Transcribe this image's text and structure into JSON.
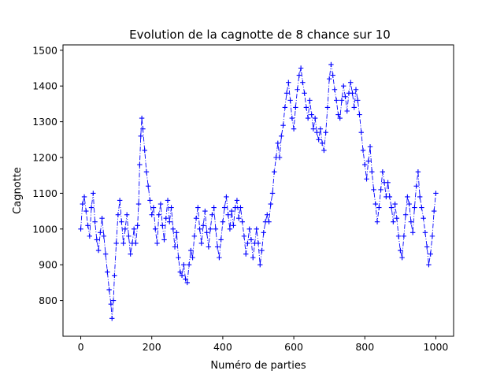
{
  "chart_data": {
    "type": "line",
    "title": "Evolution de la cagnotte de 8 chance sur 10",
    "xlabel": "Numéro de parties",
    "ylabel": "Cagnotte",
    "xlim": [
      -50,
      1050
    ],
    "ylim": [
      700,
      1515
    ],
    "xticks": [
      0,
      200,
      400,
      600,
      800,
      1000
    ],
    "yticks": [
      800,
      900,
      1000,
      1100,
      1200,
      1300,
      1400,
      1500
    ],
    "grid": false,
    "legend": "none",
    "series": [
      {
        "color": "#0000ff",
        "line_style": "dashdot",
        "marker": "+",
        "points": [
          [
            0,
            1000
          ],
          [
            5,
            1070
          ],
          [
            10,
            1090
          ],
          [
            15,
            1050
          ],
          [
            20,
            1010
          ],
          [
            25,
            980
          ],
          [
            30,
            1060
          ],
          [
            35,
            1100
          ],
          [
            40,
            1020
          ],
          [
            45,
            970
          ],
          [
            50,
            940
          ],
          [
            55,
            990
          ],
          [
            60,
            1030
          ],
          [
            65,
            980
          ],
          [
            70,
            930
          ],
          [
            75,
            880
          ],
          [
            80,
            830
          ],
          [
            85,
            790
          ],
          [
            88,
            750
          ],
          [
            92,
            800
          ],
          [
            95,
            870
          ],
          [
            100,
            960
          ],
          [
            105,
            1040
          ],
          [
            110,
            1080
          ],
          [
            115,
            1020
          ],
          [
            120,
            960
          ],
          [
            125,
            1000
          ],
          [
            130,
            1040
          ],
          [
            135,
            980
          ],
          [
            140,
            930
          ],
          [
            145,
            960
          ],
          [
            150,
            1000
          ],
          [
            155,
            960
          ],
          [
            160,
            1010
          ],
          [
            163,
            1070
          ],
          [
            166,
            1180
          ],
          [
            169,
            1260
          ],
          [
            172,
            1310
          ],
          [
            175,
            1280
          ],
          [
            180,
            1220
          ],
          [
            185,
            1160
          ],
          [
            190,
            1120
          ],
          [
            195,
            1080
          ],
          [
            200,
            1040
          ],
          [
            205,
            1060
          ],
          [
            210,
            1000
          ],
          [
            215,
            960
          ],
          [
            220,
            1040
          ],
          [
            225,
            1070
          ],
          [
            230,
            1010
          ],
          [
            235,
            970
          ],
          [
            240,
            1030
          ],
          [
            245,
            1080
          ],
          [
            250,
            1020
          ],
          [
            255,
            1060
          ],
          [
            260,
            1000
          ],
          [
            265,
            950
          ],
          [
            270,
            990
          ],
          [
            275,
            920
          ],
          [
            280,
            880
          ],
          [
            285,
            870
          ],
          [
            290,
            900
          ],
          [
            295,
            860
          ],
          [
            300,
            850
          ],
          [
            305,
            900
          ],
          [
            310,
            940
          ],
          [
            315,
            920
          ],
          [
            320,
            980
          ],
          [
            325,
            1030
          ],
          [
            330,
            1060
          ],
          [
            335,
            1000
          ],
          [
            340,
            960
          ],
          [
            345,
            1010
          ],
          [
            350,
            1050
          ],
          [
            355,
            990
          ],
          [
            360,
            950
          ],
          [
            365,
            1000
          ],
          [
            370,
            1040
          ],
          [
            375,
            1060
          ],
          [
            380,
            1000
          ],
          [
            385,
            950
          ],
          [
            390,
            920
          ],
          [
            395,
            970
          ],
          [
            400,
            1020
          ],
          [
            405,
            1060
          ],
          [
            410,
            1090
          ],
          [
            415,
            1040
          ],
          [
            420,
            1000
          ],
          [
            425,
            1050
          ],
          [
            430,
            1010
          ],
          [
            435,
            1060
          ],
          [
            440,
            1080
          ],
          [
            445,
            1030
          ],
          [
            450,
            1060
          ],
          [
            455,
            1020
          ],
          [
            460,
            980
          ],
          [
            465,
            930
          ],
          [
            470,
            960
          ],
          [
            475,
            1000
          ],
          [
            480,
            970
          ],
          [
            485,
            920
          ],
          [
            490,
            960
          ],
          [
            495,
            1000
          ],
          [
            500,
            960
          ],
          [
            505,
            900
          ],
          [
            510,
            940
          ],
          [
            515,
            990
          ],
          [
            520,
            1020
          ],
          [
            525,
            1040
          ],
          [
            530,
            1020
          ],
          [
            535,
            1070
          ],
          [
            540,
            1100
          ],
          [
            545,
            1160
          ],
          [
            550,
            1200
          ],
          [
            555,
            1240
          ],
          [
            560,
            1200
          ],
          [
            565,
            1260
          ],
          [
            570,
            1290
          ],
          [
            575,
            1340
          ],
          [
            580,
            1380
          ],
          [
            585,
            1410
          ],
          [
            590,
            1360
          ],
          [
            595,
            1310
          ],
          [
            600,
            1280
          ],
          [
            605,
            1340
          ],
          [
            610,
            1390
          ],
          [
            615,
            1430
          ],
          [
            620,
            1450
          ],
          [
            625,
            1410
          ],
          [
            630,
            1380
          ],
          [
            635,
            1340
          ],
          [
            640,
            1310
          ],
          [
            645,
            1360
          ],
          [
            650,
            1320
          ],
          [
            655,
            1280
          ],
          [
            660,
            1310
          ],
          [
            665,
            1270
          ],
          [
            670,
            1250
          ],
          [
            675,
            1280
          ],
          [
            680,
            1240
          ],
          [
            685,
            1220
          ],
          [
            690,
            1270
          ],
          [
            695,
            1340
          ],
          [
            700,
            1420
          ],
          [
            705,
            1460
          ],
          [
            710,
            1430
          ],
          [
            715,
            1390
          ],
          [
            720,
            1360
          ],
          [
            725,
            1320
          ],
          [
            730,
            1310
          ],
          [
            735,
            1360
          ],
          [
            740,
            1400
          ],
          [
            745,
            1370
          ],
          [
            750,
            1330
          ],
          [
            755,
            1380
          ],
          [
            760,
            1410
          ],
          [
            765,
            1380
          ],
          [
            770,
            1340
          ],
          [
            775,
            1390
          ],
          [
            780,
            1360
          ],
          [
            785,
            1320
          ],
          [
            790,
            1270
          ],
          [
            795,
            1220
          ],
          [
            800,
            1180
          ],
          [
            805,
            1140
          ],
          [
            810,
            1190
          ],
          [
            815,
            1230
          ],
          [
            820,
            1160
          ],
          [
            825,
            1110
          ],
          [
            830,
            1070
          ],
          [
            835,
            1020
          ],
          [
            840,
            1060
          ],
          [
            845,
            1110
          ],
          [
            850,
            1160
          ],
          [
            855,
            1130
          ],
          [
            860,
            1090
          ],
          [
            865,
            1130
          ],
          [
            870,
            1090
          ],
          [
            875,
            1060
          ],
          [
            880,
            1020
          ],
          [
            885,
            1070
          ],
          [
            890,
            1030
          ],
          [
            895,
            980
          ],
          [
            900,
            940
          ],
          [
            905,
            920
          ],
          [
            910,
            980
          ],
          [
            915,
            1040
          ],
          [
            920,
            1090
          ],
          [
            925,
            1070
          ],
          [
            930,
            1020
          ],
          [
            935,
            990
          ],
          [
            940,
            1060
          ],
          [
            945,
            1120
          ],
          [
            950,
            1160
          ],
          [
            955,
            1090
          ],
          [
            960,
            1060
          ],
          [
            965,
            1030
          ],
          [
            970,
            990
          ],
          [
            975,
            950
          ],
          [
            980,
            900
          ],
          [
            985,
            930
          ],
          [
            990,
            980
          ],
          [
            995,
            1050
          ],
          [
            1000,
            1100
          ]
        ]
      }
    ]
  }
}
